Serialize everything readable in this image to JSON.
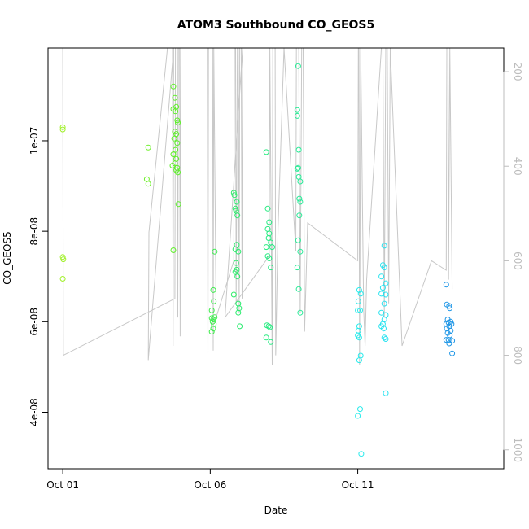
{
  "chart_data": {
    "type": "scatter",
    "title": "ATOM3 Southbound CO_GEOS5",
    "xlabel": "Date",
    "ylabel": "CO_GEOS5",
    "x_tick_labels": [
      {
        "day": 1,
        "label": "Oct 01"
      },
      {
        "day": 6,
        "label": "Oct 06"
      },
      {
        "day": 11,
        "label": "Oct 11"
      }
    ],
    "y_ticks": [
      {
        "value": 4e-08,
        "label": "4e-08"
      },
      {
        "value": 6e-08,
        "label": "6e-08"
      },
      {
        "value": 8e-08,
        "label": "8e-08"
      },
      {
        "value": 1e-07,
        "label": "1e-07"
      }
    ],
    "y2_ticks": [
      {
        "value": 200,
        "label": "200"
      },
      {
        "value": 400,
        "label": "400"
      },
      {
        "value": 600,
        "label": "600"
      },
      {
        "value": 800,
        "label": "800"
      },
      {
        "value": 1000,
        "label": "1000"
      }
    ],
    "xlim_day": [
      0.5,
      15.95
    ],
    "ylim": [
      2.75e-08,
      1.205e-07
    ],
    "y2lim_hPa": [
      150,
      1040
    ],
    "y2_inverted": true,
    "grid": false,
    "marker": "open-circle",
    "color_scale": "date: yellow-green to blue",
    "colors": {
      "profile_line": "#c8c8c8",
      "right_axis": "#bdbdbd"
    },
    "pressure_trace": [
      [
        1.0,
        150
      ],
      [
        1.02,
        800
      ],
      [
        4.8,
        680
      ],
      [
        4.82,
        150
      ],
      [
        4.88,
        150
      ],
      [
        4.9,
        720
      ],
      [
        4.92,
        150
      ],
      [
        4.96,
        150
      ],
      [
        4.98,
        760
      ],
      [
        5.0,
        150
      ],
      [
        4.72,
        150
      ],
      [
        4.74,
        780
      ],
      [
        4.76,
        150
      ],
      [
        3.9,
        810
      ],
      [
        3.92,
        540
      ],
      [
        4.55,
        150
      ],
      [
        5.9,
        150
      ],
      [
        5.92,
        800
      ],
      [
        5.94,
        150
      ],
      [
        6.08,
        150
      ],
      [
        6.1,
        790
      ],
      [
        6.12,
        150
      ],
      [
        6.2,
        720
      ],
      [
        6.8,
        600
      ],
      [
        6.82,
        150
      ],
      [
        6.86,
        150
      ],
      [
        6.88,
        690
      ],
      [
        6.92,
        150
      ],
      [
        6.95,
        150
      ],
      [
        6.98,
        710
      ],
      [
        7.0,
        150
      ],
      [
        7.05,
        150
      ],
      [
        7.08,
        680
      ],
      [
        7.1,
        150
      ],
      [
        6.5,
        720
      ],
      [
        8.0,
        590
      ],
      [
        8.02,
        150
      ],
      [
        8.1,
        820
      ],
      [
        8.12,
        150
      ],
      [
        8.2,
        150
      ],
      [
        8.22,
        800
      ],
      [
        8.3,
        530
      ],
      [
        8.5,
        150
      ],
      [
        8.9,
        580
      ],
      [
        8.92,
        150
      ],
      [
        9.0,
        150
      ],
      [
        9.05,
        710
      ],
      [
        9.1,
        150
      ],
      [
        9.15,
        150
      ],
      [
        9.2,
        750
      ],
      [
        9.3,
        520
      ],
      [
        11.0,
        600
      ],
      [
        11.02,
        150
      ],
      [
        11.04,
        150
      ],
      [
        11.06,
        820
      ],
      [
        11.1,
        150
      ],
      [
        11.2,
        700
      ],
      [
        11.25,
        780
      ],
      [
        11.3,
        640
      ],
      [
        11.8,
        150
      ],
      [
        11.85,
        150
      ],
      [
        11.9,
        720
      ],
      [
        11.95,
        150
      ],
      [
        12.0,
        150
      ],
      [
        12.05,
        690
      ],
      [
        12.1,
        150
      ],
      [
        12.5,
        780
      ],
      [
        13.5,
        600
      ],
      [
        14.0,
        620
      ],
      [
        14.02,
        150
      ],
      [
        14.06,
        150
      ],
      [
        14.08,
        640
      ],
      [
        14.12,
        150
      ],
      [
        14.2,
        660
      ]
    ],
    "points": [
      {
        "x": 1.0,
        "y": 1.03e-07
      },
      {
        "x": 1.0,
        "y": 1.025e-07
      },
      {
        "x": 1.0,
        "y": 7.43e-08
      },
      {
        "x": 1.02,
        "y": 7.38e-08
      },
      {
        "x": 1.0,
        "y": 6.95e-08
      },
      {
        "x": 3.9,
        "y": 9.85e-08
      },
      {
        "x": 3.85,
        "y": 9.15e-08
      },
      {
        "x": 3.9,
        "y": 9.05e-08
      },
      {
        "x": 4.75,
        "y": 1.12e-07
      },
      {
        "x": 4.8,
        "y": 1.095e-07
      },
      {
        "x": 4.85,
        "y": 1.075e-07
      },
      {
        "x": 4.75,
        "y": 1.07e-07
      },
      {
        "x": 4.82,
        "y": 1.065e-07
      },
      {
        "x": 4.88,
        "y": 1.045e-07
      },
      {
        "x": 4.9,
        "y": 1.04e-07
      },
      {
        "x": 4.8,
        "y": 1.02e-07
      },
      {
        "x": 4.85,
        "y": 1.015e-07
      },
      {
        "x": 4.78,
        "y": 1.005e-07
      },
      {
        "x": 4.88,
        "y": 9.95e-08
      },
      {
        "x": 4.82,
        "y": 9.8e-08
      },
      {
        "x": 4.75,
        "y": 9.7e-08
      },
      {
        "x": 4.85,
        "y": 9.6e-08
      },
      {
        "x": 4.8,
        "y": 9.5e-08
      },
      {
        "x": 4.72,
        "y": 9.45e-08
      },
      {
        "x": 4.88,
        "y": 9.4e-08
      },
      {
        "x": 4.9,
        "y": 9.3e-08
      },
      {
        "x": 4.85,
        "y": 9.35e-08
      },
      {
        "x": 4.92,
        "y": 8.6e-08
      },
      {
        "x": 4.75,
        "y": 7.58e-08
      },
      {
        "x": 6.05,
        "y": 6.25e-08
      },
      {
        "x": 6.05,
        "y": 6.08e-08
      },
      {
        "x": 6.1,
        "y": 6.05e-08
      },
      {
        "x": 6.08,
        "y": 6e-08
      },
      {
        "x": 6.12,
        "y": 5.95e-08
      },
      {
        "x": 6.1,
        "y": 5.85e-08
      },
      {
        "x": 6.05,
        "y": 5.78e-08
      },
      {
        "x": 6.15,
        "y": 6.1e-08
      },
      {
        "x": 6.1,
        "y": 6.7e-08
      },
      {
        "x": 6.12,
        "y": 6.45e-08
      },
      {
        "x": 6.15,
        "y": 7.55e-08
      },
      {
        "x": 6.8,
        "y": 8.85e-08
      },
      {
        "x": 6.82,
        "y": 8.8e-08
      },
      {
        "x": 6.9,
        "y": 8.65e-08
      },
      {
        "x": 6.85,
        "y": 8.5e-08
      },
      {
        "x": 6.88,
        "y": 8.45e-08
      },
      {
        "x": 6.92,
        "y": 8.35e-08
      },
      {
        "x": 6.9,
        "y": 7.7e-08
      },
      {
        "x": 6.85,
        "y": 7.6e-08
      },
      {
        "x": 6.95,
        "y": 7.55e-08
      },
      {
        "x": 6.88,
        "y": 7.3e-08
      },
      {
        "x": 6.9,
        "y": 7.15e-08
      },
      {
        "x": 6.85,
        "y": 7.1e-08
      },
      {
        "x": 6.92,
        "y": 7e-08
      },
      {
        "x": 6.8,
        "y": 6.6e-08
      },
      {
        "x": 6.95,
        "y": 6.4e-08
      },
      {
        "x": 6.98,
        "y": 6.3e-08
      },
      {
        "x": 6.95,
        "y": 6.2e-08
      },
      {
        "x": 7.0,
        "y": 5.9e-08
      },
      {
        "x": 7.9,
        "y": 9.75e-08
      },
      {
        "x": 7.95,
        "y": 8.5e-08
      },
      {
        "x": 8.0,
        "y": 8.2e-08
      },
      {
        "x": 7.95,
        "y": 8.05e-08
      },
      {
        "x": 8.0,
        "y": 7.95e-08
      },
      {
        "x": 7.98,
        "y": 7.85e-08
      },
      {
        "x": 8.05,
        "y": 7.75e-08
      },
      {
        "x": 7.9,
        "y": 7.65e-08
      },
      {
        "x": 8.1,
        "y": 7.65e-08
      },
      {
        "x": 7.95,
        "y": 7.45e-08
      },
      {
        "x": 8.0,
        "y": 7.4e-08
      },
      {
        "x": 8.05,
        "y": 7.2e-08
      },
      {
        "x": 7.92,
        "y": 5.92e-08
      },
      {
        "x": 7.98,
        "y": 5.9e-08
      },
      {
        "x": 8.02,
        "y": 5.88e-08
      },
      {
        "x": 7.9,
        "y": 5.65e-08
      },
      {
        "x": 8.05,
        "y": 5.55e-08
      },
      {
        "x": 8.98,
        "y": 1.165e-07
      },
      {
        "x": 8.95,
        "y": 1.068e-07
      },
      {
        "x": 8.95,
        "y": 1.055e-07
      },
      {
        "x": 9.0,
        "y": 9.8e-08
      },
      {
        "x": 8.98,
        "y": 9.4e-08
      },
      {
        "x": 8.95,
        "y": 9.38e-08
      },
      {
        "x": 9.0,
        "y": 9.2e-08
      },
      {
        "x": 9.05,
        "y": 9.1e-08
      },
      {
        "x": 9.02,
        "y": 8.72e-08
      },
      {
        "x": 9.05,
        "y": 8.65e-08
      },
      {
        "x": 9.02,
        "y": 8.35e-08
      },
      {
        "x": 8.98,
        "y": 7.8e-08
      },
      {
        "x": 9.05,
        "y": 7.55e-08
      },
      {
        "x": 8.95,
        "y": 7.2e-08
      },
      {
        "x": 9.0,
        "y": 6.72e-08
      },
      {
        "x": 9.05,
        "y": 6.2e-08
      },
      {
        "x": 11.05,
        "y": 6.7e-08
      },
      {
        "x": 11.1,
        "y": 6.62e-08
      },
      {
        "x": 11.02,
        "y": 6.45e-08
      },
      {
        "x": 11.0,
        "y": 6.25e-08
      },
      {
        "x": 11.08,
        "y": 6.25e-08
      },
      {
        "x": 11.05,
        "y": 5.9e-08
      },
      {
        "x": 11.02,
        "y": 5.8e-08
      },
      {
        "x": 11.0,
        "y": 5.7e-08
      },
      {
        "x": 11.05,
        "y": 5.65e-08
      },
      {
        "x": 11.1,
        "y": 5.25e-08
      },
      {
        "x": 11.05,
        "y": 5.15e-08
      },
      {
        "x": 11.08,
        "y": 4.07e-08
      },
      {
        "x": 11.0,
        "y": 3.92e-08
      },
      {
        "x": 11.12,
        "y": 3.08e-08
      },
      {
        "x": 11.9,
        "y": 7.68e-08
      },
      {
        "x": 11.85,
        "y": 7.25e-08
      },
      {
        "x": 11.9,
        "y": 7.2e-08
      },
      {
        "x": 11.8,
        "y": 7e-08
      },
      {
        "x": 11.95,
        "y": 6.85e-08
      },
      {
        "x": 11.85,
        "y": 6.75e-08
      },
      {
        "x": 11.8,
        "y": 6.62e-08
      },
      {
        "x": 11.95,
        "y": 6.6e-08
      },
      {
        "x": 11.9,
        "y": 6.4e-08
      },
      {
        "x": 11.8,
        "y": 6.2e-08
      },
      {
        "x": 11.95,
        "y": 6.15e-08
      },
      {
        "x": 11.9,
        "y": 6.05e-08
      },
      {
        "x": 11.85,
        "y": 5.95e-08
      },
      {
        "x": 11.8,
        "y": 5.9e-08
      },
      {
        "x": 11.88,
        "y": 5.85e-08
      },
      {
        "x": 11.9,
        "y": 5.65e-08
      },
      {
        "x": 11.95,
        "y": 5.62e-08
      },
      {
        "x": 11.95,
        "y": 4.42e-08
      },
      {
        "x": 14.0,
        "y": 6.82e-08
      },
      {
        "x": 14.02,
        "y": 6.38e-08
      },
      {
        "x": 14.1,
        "y": 6.35e-08
      },
      {
        "x": 14.12,
        "y": 6.3e-08
      },
      {
        "x": 14.05,
        "y": 6.05e-08
      },
      {
        "x": 14.15,
        "y": 6e-08
      },
      {
        "x": 14.08,
        "y": 5.98e-08
      },
      {
        "x": 14.0,
        "y": 5.95e-08
      },
      {
        "x": 14.18,
        "y": 5.95e-08
      },
      {
        "x": 14.1,
        "y": 5.9e-08
      },
      {
        "x": 14.02,
        "y": 5.85e-08
      },
      {
        "x": 14.15,
        "y": 5.8e-08
      },
      {
        "x": 14.05,
        "y": 5.75e-08
      },
      {
        "x": 14.12,
        "y": 5.7e-08
      },
      {
        "x": 14.0,
        "y": 5.6e-08
      },
      {
        "x": 14.08,
        "y": 5.6e-08
      },
      {
        "x": 14.2,
        "y": 5.58e-08
      },
      {
        "x": 14.1,
        "y": 5.52e-08
      },
      {
        "x": 14.2,
        "y": 5.3e-08
      }
    ]
  }
}
